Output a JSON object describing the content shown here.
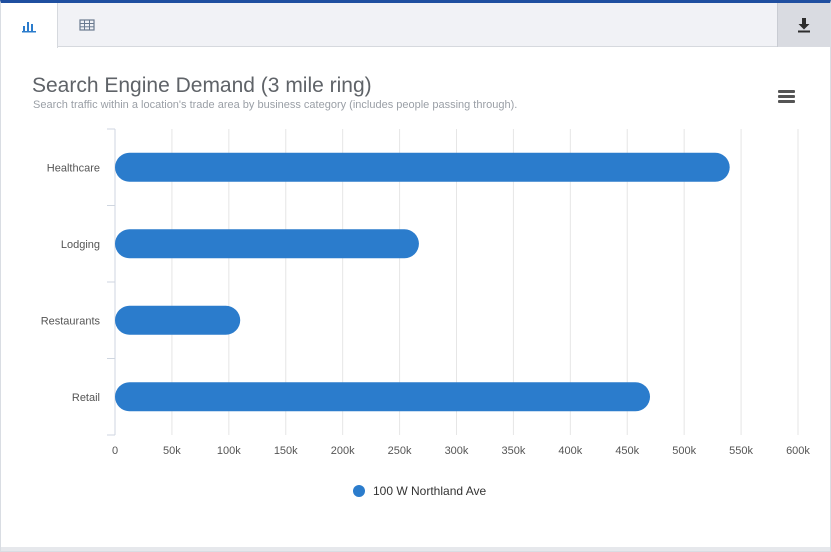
{
  "colors": {
    "bar": "#2b7ccc",
    "grid": "#e6e6e6",
    "axis_text": "#555555",
    "tab_bg": "#f1f2f6",
    "accent_top": "#1f4fa0"
  },
  "tabs": [
    {
      "name": "chart-tab",
      "icon": "bar-chart-icon",
      "active": true
    },
    {
      "name": "table-tab",
      "icon": "table-grid-icon",
      "active": false
    }
  ],
  "toolbar": {
    "download_icon": "download-icon",
    "menu_icon": "hamburger-menu-icon"
  },
  "chart_data": {
    "type": "bar",
    "orientation": "horizontal",
    "title": "Search Engine Demand (3 mile ring)",
    "subtitle": "Search traffic within a location's trade area by business category (includes people passing through).",
    "categories": [
      "Healthcare",
      "Lodging",
      "Restaurants",
      "Retail"
    ],
    "series": [
      {
        "name": "100 W Northland Ave",
        "values": [
          540000,
          267000,
          110000,
          470000
        ]
      }
    ],
    "xlim": [
      0,
      600000
    ],
    "xticks": [
      0,
      50000,
      100000,
      150000,
      200000,
      250000,
      300000,
      350000,
      400000,
      450000,
      500000,
      550000,
      600000
    ],
    "xtick_labels": [
      "0",
      "50k",
      "100k",
      "150k",
      "200k",
      "250k",
      "300k",
      "350k",
      "400k",
      "450k",
      "500k",
      "550k",
      "600k"
    ],
    "grid": true,
    "legend_position": "bottom-center"
  }
}
